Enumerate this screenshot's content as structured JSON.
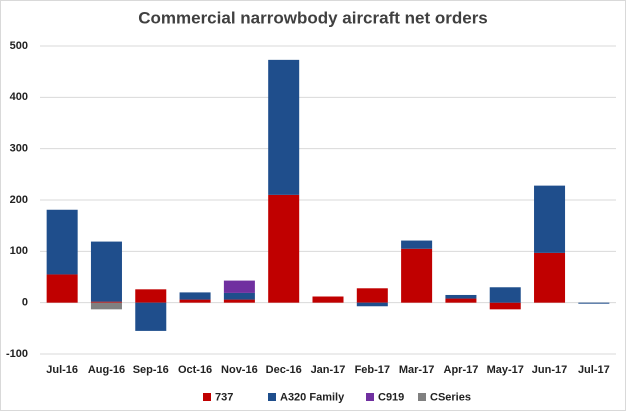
{
  "chart_data": {
    "type": "stacked_bar",
    "title": "Commercial narrowbody aircraft net orders",
    "categories": [
      "Jul-16",
      "Aug-16",
      "Sep-16",
      "Oct-16",
      "Nov-16",
      "Dec-16",
      "Jan-17",
      "Feb-17",
      "Mar-17",
      "Apr-17",
      "May-17",
      "Jun-17",
      "Jul-17"
    ],
    "series": [
      {
        "name": "737",
        "color": "#c00000",
        "values": [
          55,
          2,
          26,
          6,
          6,
          210,
          12,
          28,
          105,
          8,
          -13,
          97,
          0
        ]
      },
      {
        "name": "A320 Family",
        "color": "#1f4e8c",
        "values": [
          126,
          117,
          -55,
          14,
          13,
          263,
          0,
          -7,
          16,
          7,
          30,
          131,
          -2
        ]
      },
      {
        "name": "C919",
        "color": "#7030a0",
        "values": [
          0,
          0,
          0,
          0,
          24,
          0,
          0,
          0,
          0,
          0,
          0,
          0,
          0
        ]
      },
      {
        "name": "CSeries",
        "color": "#808080",
        "values": [
          0,
          -13,
          0,
          0,
          0,
          0,
          0,
          0,
          0,
          0,
          0,
          0,
          0
        ]
      }
    ],
    "ylim": [
      -100,
      500
    ],
    "yticks": [
      -100,
      0,
      100,
      200,
      300,
      400,
      500
    ],
    "grid": true,
    "legend": "bottom"
  }
}
